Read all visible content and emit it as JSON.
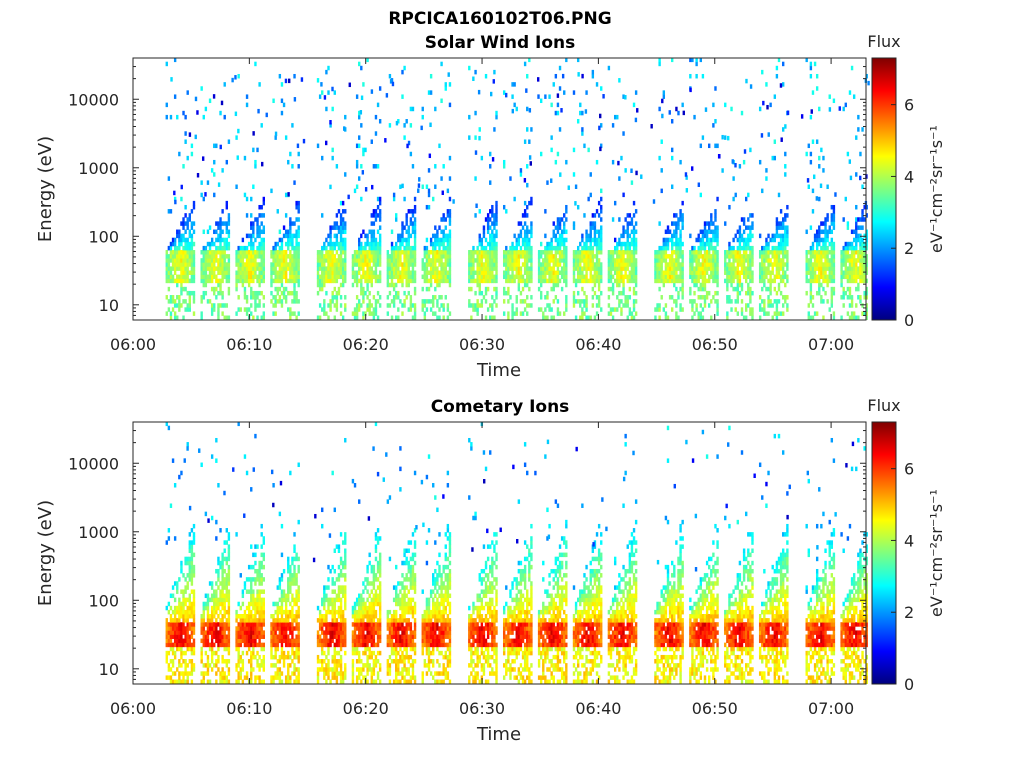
{
  "figure": {
    "title": "RPCICA160102T06.PNG"
  },
  "colormap": [
    "#00007F",
    "#0000FF",
    "#007FFF",
    "#00FFFF",
    "#7FFF7F",
    "#FFFF00",
    "#FF7F00",
    "#FF0000",
    "#7F0000"
  ],
  "chart_data": [
    {
      "type": "heatmap",
      "title": "Solar Wind Ions",
      "xlabel": "Time",
      "ylabel": "Energy (eV)",
      "yscale": "log",
      "xlim": [
        "06:00",
        "07:03"
      ],
      "ylim": [
        6,
        40000
      ],
      "x_ticks": [
        "06:00",
        "06:10",
        "06:20",
        "06:30",
        "06:40",
        "06:50",
        "07:00"
      ],
      "y_ticks": [
        "10",
        "100",
        "1000",
        "10000"
      ],
      "colorbar": {
        "title": "Flux",
        "label": "eV⁻¹cm⁻²sr⁻¹s⁻¹",
        "range": [
          0,
          7.3
        ],
        "ticks": [
          "0",
          "2",
          "4",
          "6"
        ]
      },
      "sweep_times": [
        "06:04",
        "06:07",
        "06:10",
        "06:13",
        "06:17",
        "06:20",
        "06:23",
        "06:26",
        "06:30",
        "06:33",
        "06:36",
        "06:39",
        "06:42",
        "06:46",
        "06:49",
        "06:52",
        "06:55",
        "06:59",
        "07:02"
      ],
      "band_energy_eV": [
        20,
        60
      ],
      "band_flux": [
        3.5,
        4.5
      ]
    },
    {
      "type": "heatmap",
      "title": "Cometary Ions",
      "xlabel": "Time",
      "ylabel": "Energy (eV)",
      "yscale": "log",
      "xlim": [
        "06:00",
        "07:03"
      ],
      "ylim": [
        6,
        40000
      ],
      "x_ticks": [
        "06:00",
        "06:10",
        "06:20",
        "06:30",
        "06:40",
        "06:50",
        "07:00"
      ],
      "y_ticks": [
        "10",
        "100",
        "1000",
        "10000"
      ],
      "colorbar": {
        "title": "Flux",
        "label": "eV⁻¹cm⁻²sr⁻¹s⁻¹",
        "range": [
          0,
          7.3
        ],
        "ticks": [
          "0",
          "2",
          "4",
          "6"
        ]
      },
      "sweep_times": [
        "06:04",
        "06:07",
        "06:10",
        "06:13",
        "06:17",
        "06:20",
        "06:23",
        "06:26",
        "06:30",
        "06:33",
        "06:36",
        "06:39",
        "06:42",
        "06:46",
        "06:49",
        "06:52",
        "06:55",
        "06:59",
        "07:02"
      ],
      "band_energy_eV": [
        20,
        50
      ],
      "band_flux": [
        5.5,
        6.5
      ]
    }
  ]
}
